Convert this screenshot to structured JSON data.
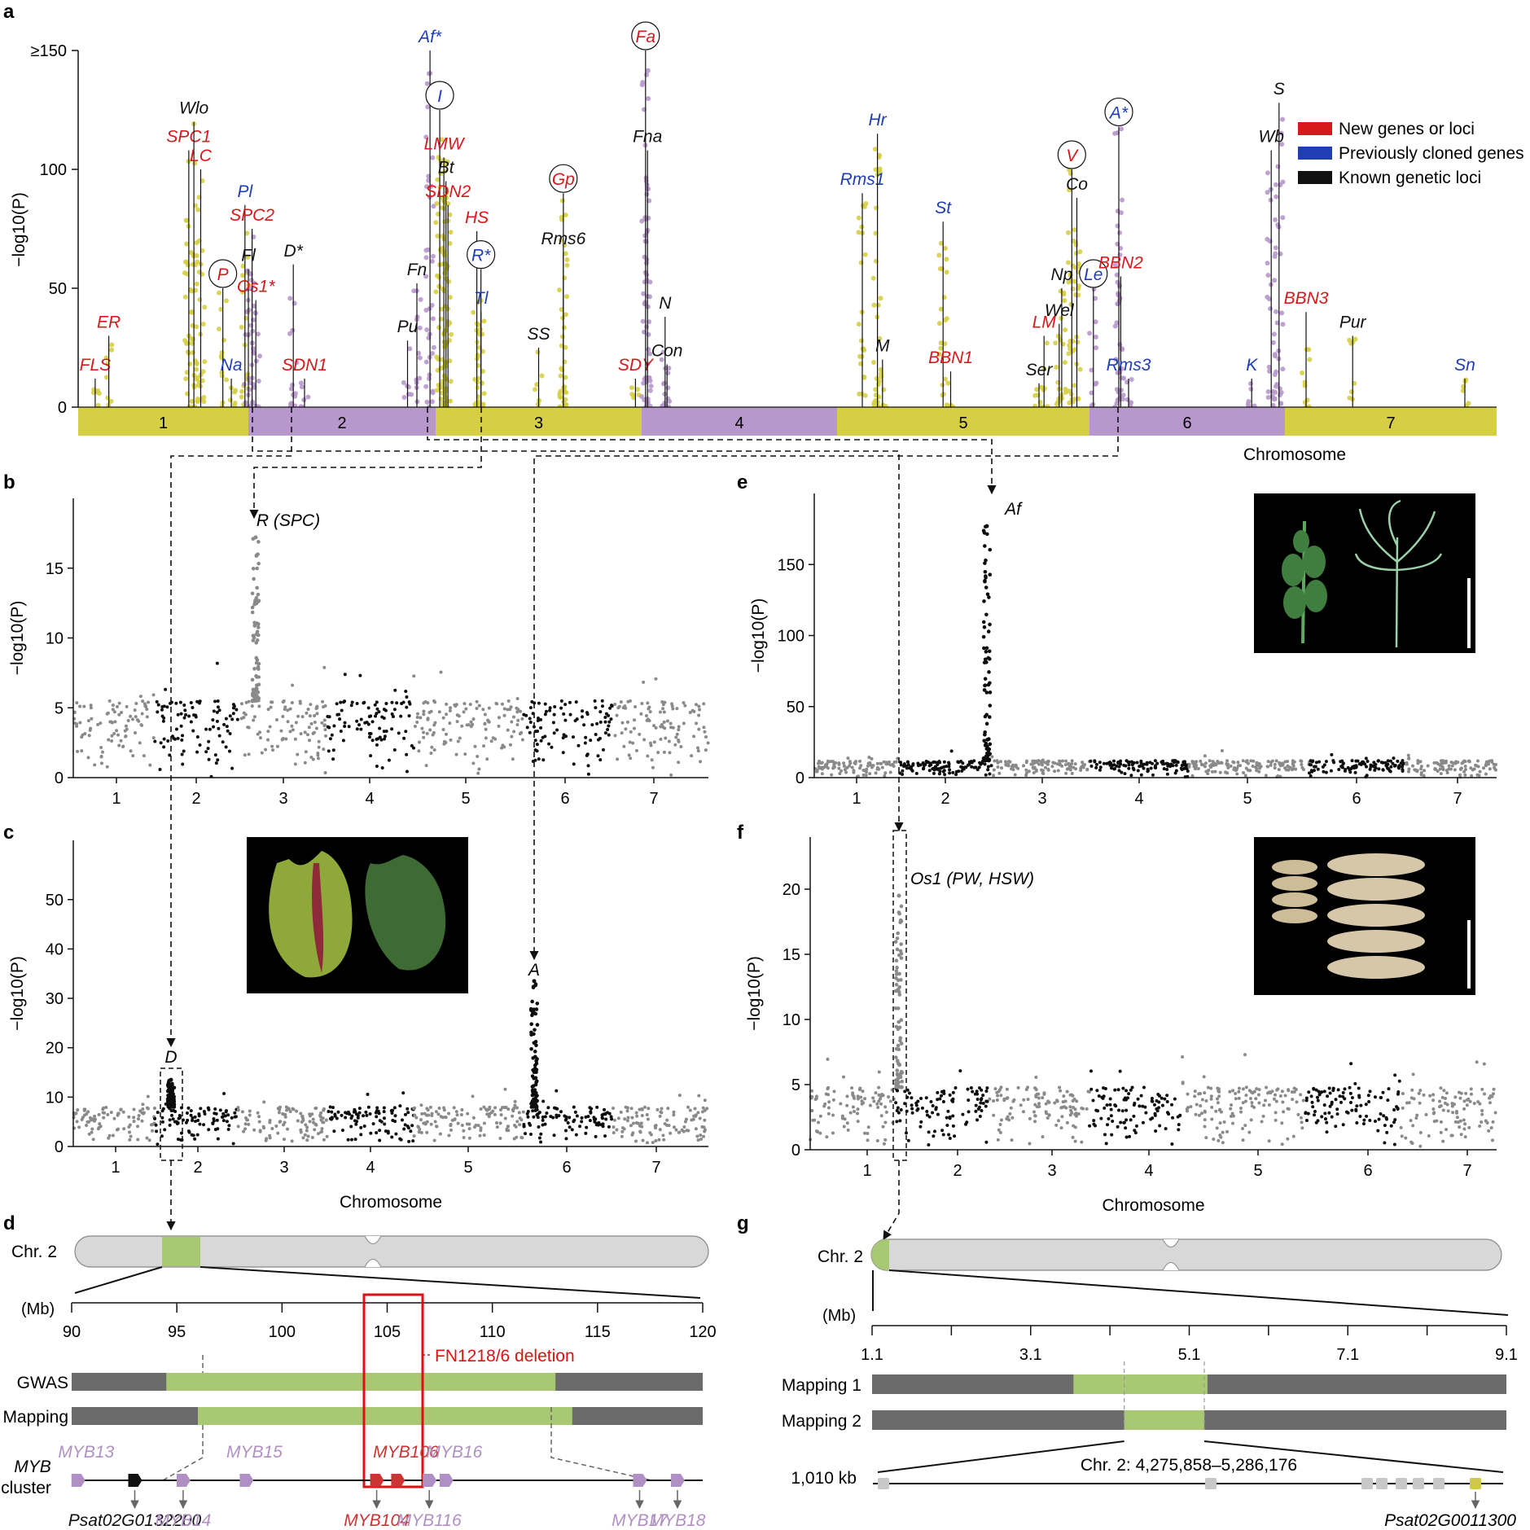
{
  "colors": {
    "new": "#d7191c",
    "prev": "#1f3eb5",
    "known": "#111111",
    "yellow": "#d6cf45",
    "purple": "#b898cc",
    "grey": "#8a8a8a",
    "dark": "#0d0d0d",
    "green": "#a8c873",
    "bar_dark": "#6b6b6b",
    "myb_purple": "#b090c4",
    "myb_red": "#cc3333"
  },
  "panels": {
    "a": "a",
    "b": "b",
    "c": "c",
    "d": "d",
    "e": "e",
    "f": "f",
    "g": "g"
  },
  "chart_data": [
    {
      "panel": "a",
      "type": "scatter",
      "xlabel": "Chromosome",
      "ylabel": "−log10(P)",
      "y_ticks": [
        "0",
        "50",
        "100",
        "≥150"
      ],
      "ylim": [
        0,
        150
      ],
      "chromosomes": [
        "1",
        "2",
        "3",
        "4",
        "5",
        "6",
        "7"
      ],
      "legend": {
        "placement": "top-right",
        "entries": [
          {
            "label": "New genes or loci",
            "color": "#d7191c"
          },
          {
            "label": "Previously cloned genes",
            "color": "#1f3eb5"
          },
          {
            "label": "Known genetic loci",
            "color": "#111111"
          }
        ]
      },
      "loci": [
        {
          "name": "FLS",
          "cat": "new",
          "chr": 1,
          "pos": 0.1,
          "y": 12
        },
        {
          "name": "ER",
          "cat": "new",
          "chr": 1,
          "pos": 0.18,
          "y": 30
        },
        {
          "name": "SPC1",
          "cat": "new",
          "chr": 1,
          "pos": 0.65,
          "y": 108
        },
        {
          "name": "Wlo",
          "cat": "known",
          "chr": 1,
          "pos": 0.68,
          "y": 120
        },
        {
          "name": "LC",
          "cat": "new",
          "chr": 1,
          "pos": 0.72,
          "y": 100
        },
        {
          "name": "P",
          "cat": "new",
          "chr": 1,
          "pos": 0.85,
          "y": 50,
          "circled": true
        },
        {
          "name": "Na",
          "cat": "prev",
          "chr": 1,
          "pos": 0.9,
          "y": 12
        },
        {
          "name": "Pl",
          "cat": "prev",
          "chr": 1,
          "pos": 0.98,
          "y": 85
        },
        {
          "name": "SPC2",
          "cat": "new",
          "chr": 2,
          "pos": 0.02,
          "y": 75
        },
        {
          "name": "Fl",
          "cat": "known",
          "chr": 2,
          "pos": 0.0,
          "y": 58
        },
        {
          "name": "Os1*",
          "cat": "new",
          "chr": 2,
          "pos": 0.04,
          "y": 45
        },
        {
          "name": "D*",
          "cat": "known",
          "chr": 2,
          "pos": 0.24,
          "y": 60
        },
        {
          "name": "SDN1",
          "cat": "new",
          "chr": 2,
          "pos": 0.3,
          "y": 12
        },
        {
          "name": "Pu",
          "cat": "known",
          "chr": 2,
          "pos": 0.85,
          "y": 28
        },
        {
          "name": "Fn",
          "cat": "known",
          "chr": 2,
          "pos": 0.9,
          "y": 52
        },
        {
          "name": "Af*",
          "cat": "prev",
          "chr": 2,
          "pos": 0.97,
          "y": 150
        },
        {
          "name": "I",
          "cat": "prev",
          "chr": 3,
          "pos": 0.02,
          "y": 125,
          "circled": true
        },
        {
          "name": "LMW",
          "cat": "new",
          "chr": 3,
          "pos": 0.04,
          "y": 105
        },
        {
          "name": "Bt",
          "cat": "known",
          "chr": 3,
          "pos": 0.05,
          "y": 95
        },
        {
          "name": "SDN2",
          "cat": "new",
          "chr": 3,
          "pos": 0.06,
          "y": 85
        },
        {
          "name": "HS",
          "cat": "new",
          "chr": 3,
          "pos": 0.2,
          "y": 74
        },
        {
          "name": "R*",
          "cat": "prev",
          "chr": 3,
          "pos": 0.22,
          "y": 58,
          "circled": true
        },
        {
          "name": "Tl",
          "cat": "prev",
          "chr": 3,
          "pos": 0.22,
          "y": 40
        },
        {
          "name": "SS",
          "cat": "known",
          "chr": 3,
          "pos": 0.5,
          "y": 25
        },
        {
          "name": "Gp",
          "cat": "new",
          "chr": 3,
          "pos": 0.62,
          "y": 90,
          "circled": true
        },
        {
          "name": "Rms6",
          "cat": "known",
          "chr": 3,
          "pos": 0.62,
          "y": 65
        },
        {
          "name": "SDY",
          "cat": "new",
          "chr": 3,
          "pos": 0.97,
          "y": 12
        },
        {
          "name": "Fa",
          "cat": "new",
          "chr": 4,
          "pos": 0.02,
          "y": 150,
          "circled": true
        },
        {
          "name": "Fna",
          "cat": "known",
          "chr": 4,
          "pos": 0.03,
          "y": 108
        },
        {
          "name": "N",
          "cat": "known",
          "chr": 4,
          "pos": 0.12,
          "y": 38
        },
        {
          "name": "Con",
          "cat": "known",
          "chr": 4,
          "pos": 0.13,
          "y": 18
        },
        {
          "name": "Rms1",
          "cat": "prev",
          "chr": 5,
          "pos": 0.1,
          "y": 90
        },
        {
          "name": "Hr",
          "cat": "prev",
          "chr": 5,
          "pos": 0.16,
          "y": 115
        },
        {
          "name": "M",
          "cat": "known",
          "chr": 5,
          "pos": 0.18,
          "y": 20
        },
        {
          "name": "St",
          "cat": "prev",
          "chr": 5,
          "pos": 0.42,
          "y": 78
        },
        {
          "name": "BBN1",
          "cat": "new",
          "chr": 5,
          "pos": 0.45,
          "y": 15
        },
        {
          "name": "Ser",
          "cat": "known",
          "chr": 5,
          "pos": 0.8,
          "y": 10
        },
        {
          "name": "LM",
          "cat": "new",
          "chr": 5,
          "pos": 0.82,
          "y": 30
        },
        {
          "name": "Wel",
          "cat": "known",
          "chr": 5,
          "pos": 0.88,
          "y": 35
        },
        {
          "name": "Np",
          "cat": "known",
          "chr": 5,
          "pos": 0.89,
          "y": 50
        },
        {
          "name": "V",
          "cat": "new",
          "chr": 5,
          "pos": 0.93,
          "y": 100,
          "circled": true
        },
        {
          "name": "Co",
          "cat": "known",
          "chr": 5,
          "pos": 0.95,
          "y": 88
        },
        {
          "name": "Le",
          "cat": "prev",
          "chr": 6,
          "pos": 0.02,
          "y": 50,
          "circled": true
        },
        {
          "name": "A*",
          "cat": "prev",
          "chr": 6,
          "pos": 0.15,
          "y": 118,
          "circled": true
        },
        {
          "name": "BBN2",
          "cat": "new",
          "chr": 6,
          "pos": 0.16,
          "y": 55
        },
        {
          "name": "Rms3",
          "cat": "prev",
          "chr": 6,
          "pos": 0.2,
          "y": 12
        },
        {
          "name": "K",
          "cat": "prev",
          "chr": 6,
          "pos": 0.83,
          "y": 12
        },
        {
          "name": "Wb",
          "cat": "known",
          "chr": 6,
          "pos": 0.93,
          "y": 108
        },
        {
          "name": "S",
          "cat": "known",
          "chr": 6,
          "pos": 0.97,
          "y": 128
        },
        {
          "name": "BBN3",
          "cat": "new",
          "chr": 7,
          "pos": 0.1,
          "y": 40
        },
        {
          "name": "Pur",
          "cat": "known",
          "chr": 7,
          "pos": 0.32,
          "y": 30
        },
        {
          "name": "Sn",
          "cat": "prev",
          "chr": 7,
          "pos": 0.85,
          "y": 12
        }
      ]
    },
    {
      "panel": "b",
      "type": "scatter",
      "xlabel": "",
      "ylabel": "−log10(P)",
      "y_ticks": [
        "0",
        "5",
        "10",
        "15"
      ],
      "ylim": [
        0,
        20
      ],
      "chromosomes": [
        "1",
        "2",
        "3",
        "4",
        "5",
        "6",
        "7"
      ],
      "peaks": [
        {
          "label": "R (SPC)",
          "chr": 3,
          "y": 17.2
        }
      ]
    },
    {
      "panel": "c",
      "type": "scatter",
      "xlabel": "Chromosome",
      "ylabel": "−log10(P)",
      "y_ticks": [
        "0",
        "10",
        "20",
        "30",
        "40",
        "50"
      ],
      "ylim": [
        0,
        62
      ],
      "chromosomes": [
        "1",
        "2",
        "3",
        "4",
        "5",
        "6",
        "7"
      ],
      "peaks": [
        {
          "label": "D",
          "chr": 2,
          "y": 13.5
        },
        {
          "label": "A",
          "chr": 6,
          "y": 33.5
        }
      ]
    },
    {
      "panel": "e",
      "type": "scatter",
      "xlabel": "",
      "ylabel": "−log10(P)",
      "y_ticks": [
        "0",
        "50",
        "100",
        "150"
      ],
      "ylim": [
        0,
        200
      ],
      "chromosomes": [
        "1",
        "2",
        "3",
        "4",
        "5",
        "6",
        "7"
      ],
      "peaks": [
        {
          "label": "Af",
          "chr": 2,
          "y": 177
        }
      ]
    },
    {
      "panel": "f",
      "type": "scatter",
      "xlabel": "Chromosome",
      "ylabel": "−log10(P)",
      "y_ticks": [
        "0",
        "5",
        "10",
        "15",
        "20"
      ],
      "ylim": [
        0,
        24
      ],
      "chromosomes": [
        "1",
        "2",
        "3",
        "4",
        "5",
        "6",
        "7"
      ],
      "peaks": [
        {
          "label": "Os1 (PW, HSW)",
          "chr": 1,
          "y": 19.5
        }
      ]
    },
    {
      "panel": "d",
      "type": "bar",
      "chr_label": "Chr. 2",
      "unit": "(Mb)",
      "x_ticks": [
        "90",
        "95",
        "100",
        "105",
        "110",
        "115",
        "120"
      ],
      "xlim": [
        90,
        120
      ],
      "deletion_label": "FN1218/6 deletion",
      "rows": [
        {
          "label": "GWAS",
          "start": 94.5,
          "end": 113
        },
        {
          "label": "Mapping",
          "start": 96,
          "end": 113.8
        }
      ],
      "cluster_label": [
        "MYB",
        "cluster"
      ],
      "genes": [
        {
          "name": "MYB13",
          "pos": 90.3,
          "color": "purple",
          "side": "top"
        },
        {
          "name": "Psat02G0132200",
          "pos": 93,
          "color": "black",
          "side": "bottom"
        },
        {
          "name": "MYB14",
          "pos": 95.3,
          "color": "purple",
          "side": "bottom"
        },
        {
          "name": "MYB15",
          "pos": 98.3,
          "color": "purple",
          "side": "top"
        },
        {
          "name": "MYB104",
          "pos": 104.5,
          "color": "red",
          "side": "bottom"
        },
        {
          "name": "MYB106",
          "pos": 105.5,
          "color": "red",
          "side": "top"
        },
        {
          "name": "MYB116",
          "pos": 107,
          "color": "purple",
          "side": "bottom"
        },
        {
          "name": "MYB16",
          "pos": 107.8,
          "color": "purple",
          "side": "top"
        },
        {
          "name": "MYB17",
          "pos": 117,
          "color": "purple",
          "side": "bottom"
        },
        {
          "name": "MYB18",
          "pos": 118.8,
          "color": "purple",
          "side": "bottom"
        }
      ]
    },
    {
      "panel": "g",
      "type": "bar",
      "chr_label": "Chr. 2",
      "unit": "(Mb)",
      "x_ticks": [
        "1.1",
        "3.1",
        "5.1",
        "7.1",
        "9.1"
      ],
      "xlim": [
        1.1,
        9.1
      ],
      "rows": [
        {
          "label": "Mapping 1",
          "start": 3.64,
          "end": 5.33
        },
        {
          "label": "Mapping 2",
          "start": 4.28,
          "end": 5.29
        }
      ],
      "zoom_label": "Chr. 2: 4,275,858–5,286,176",
      "scale_label": "1,010 kb",
      "highlight_gene": "Psat02G0011300"
    }
  ]
}
